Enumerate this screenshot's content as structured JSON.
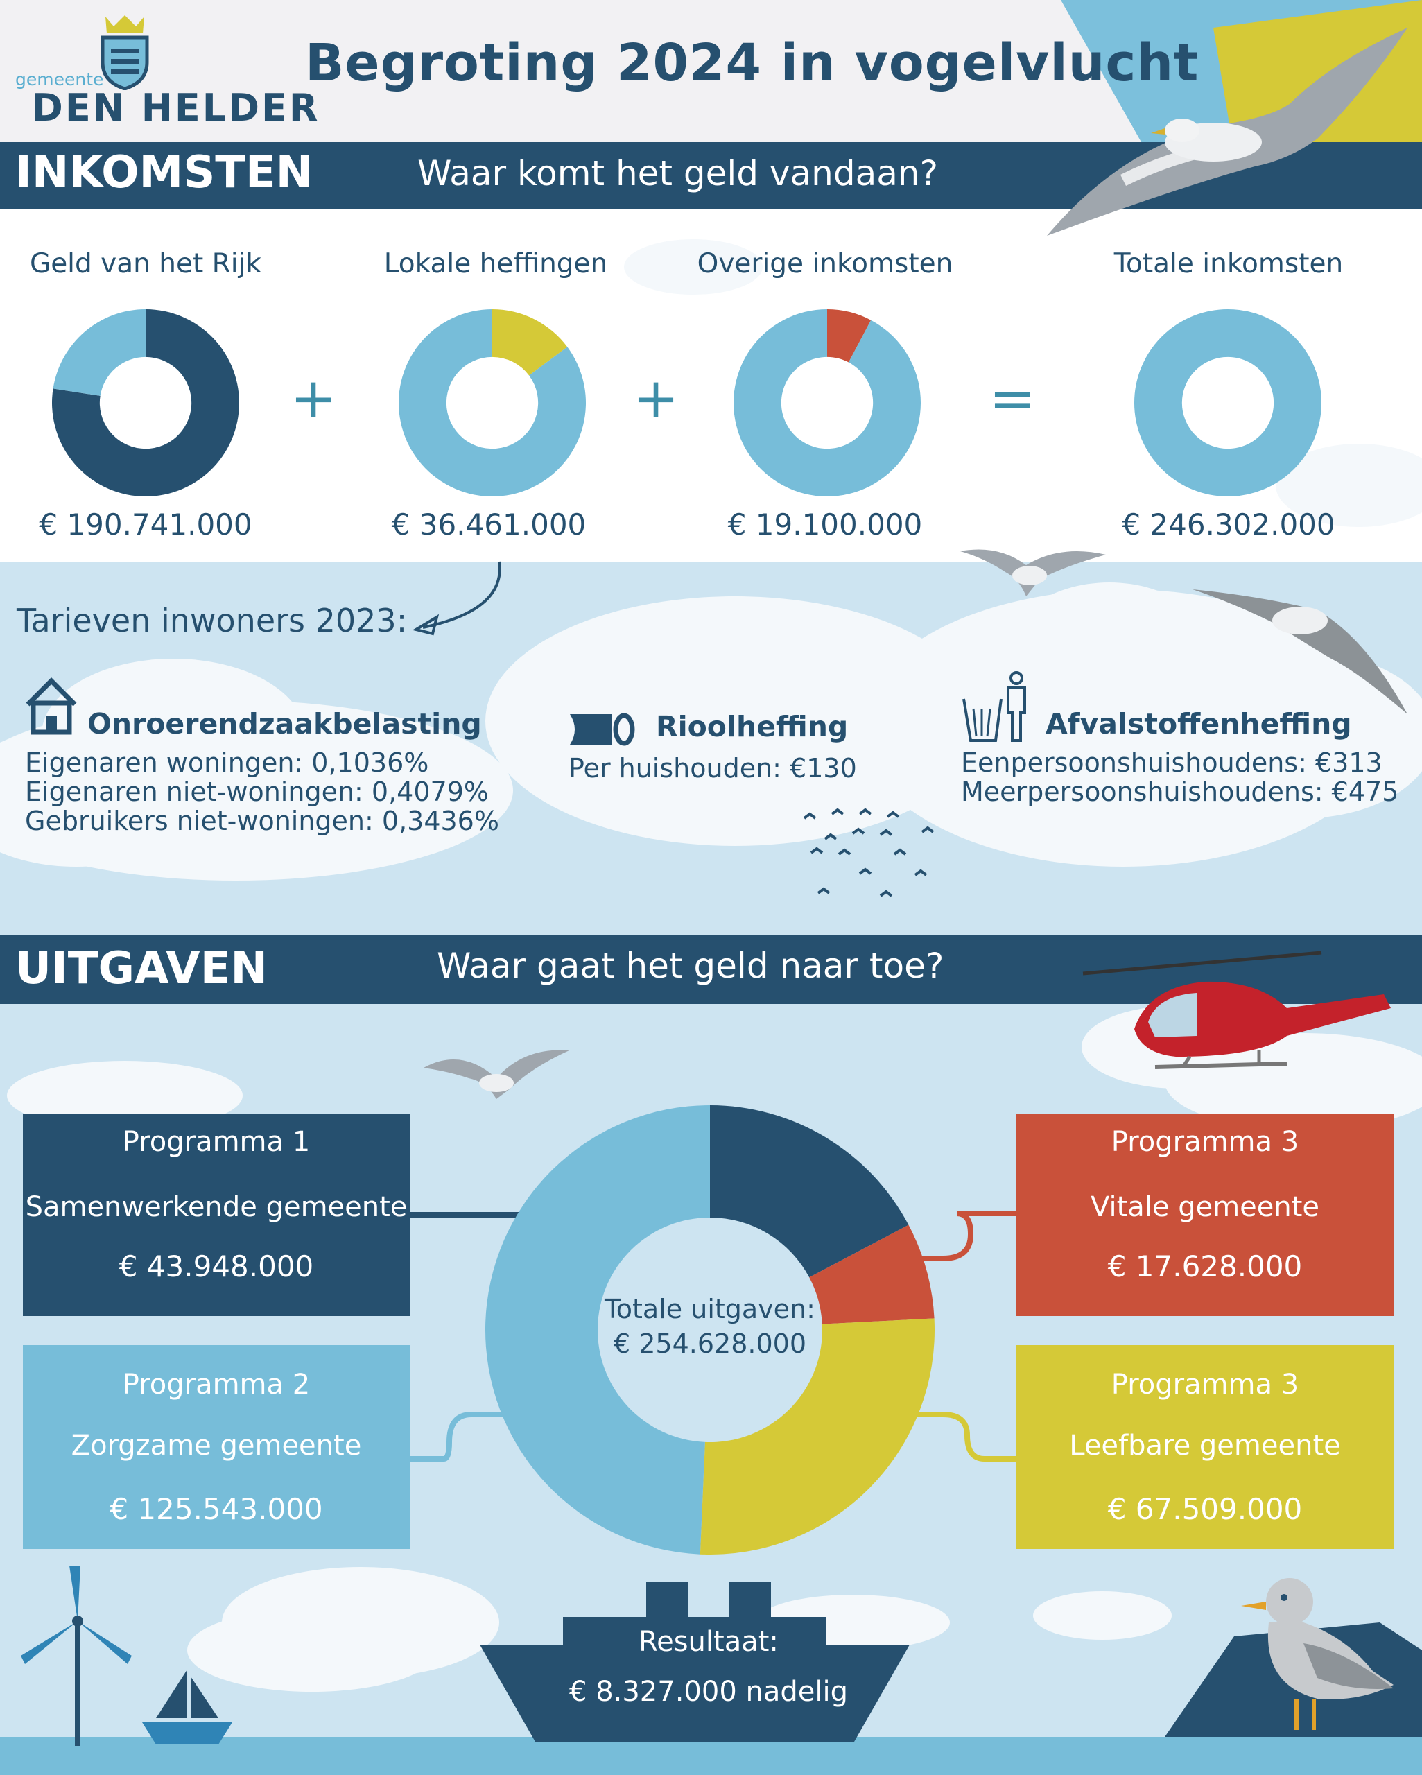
{
  "header": {
    "title": "Begroting 2024 in vogelvlucht",
    "logo_small": "gemeente",
    "logo_big": "DEN HELDER"
  },
  "income_section": {
    "title": "INKOMSTEN",
    "subtitle": "Waar komt het geld vandaan?",
    "plus": "+",
    "equals": "="
  },
  "expense_section": {
    "title": "UITGAVEN",
    "subtitle": "Waar gaat het geld naar toe?"
  },
  "tariffs": {
    "heading": "Tarieven inwoners 2023:",
    "ozb": {
      "title": "Onroerendzaakbelasting",
      "lines": [
        "Eigenaren woningen: 0,1036%",
        "Eigenaren niet-woningen: 0,4079%",
        "Gebruikers niet-woningen: 0,3436%"
      ]
    },
    "riool": {
      "title": "Rioolheffing",
      "lines": [
        "Per huishouden: €130"
      ]
    },
    "afval": {
      "title": "Afvalstoffenheffing",
      "lines": [
        "Eenpersoonshuishoudens: €313",
        "Meerpersoonshuishoudens: €475"
      ]
    }
  },
  "expenses_center": {
    "label": "Totale uitgaven:",
    "amount": "€ 254.628.000"
  },
  "result": {
    "label": "Resultaat:",
    "amount": "€ 8.327.000 nadelig"
  },
  "colors": {
    "navy": "#26506f",
    "light_blue": "#77bdd9",
    "yellow": "#d5c937",
    "red": "#c9513a",
    "sky": "#cde4f1"
  },
  "icons": [
    "house-icon",
    "pipe-icon",
    "trash-bin-icon",
    "seagull-icon",
    "helicopter-icon",
    "wind-turbine-icon",
    "sailboat-icon",
    "ship-icon"
  ],
  "chart_data": [
    {
      "type": "pie",
      "label": "Geld van het Rijk",
      "amount_text": "€ 190.741.000",
      "values": [
        190741000,
        55561000
      ],
      "colors": [
        "#26506f",
        "#77bdd9"
      ]
    },
    {
      "type": "pie",
      "label": "Lokale heffingen",
      "amount_text": "€ 36.461.000",
      "values": [
        36461000,
        209841000
      ],
      "colors": [
        "#d5c937",
        "#77bdd9"
      ]
    },
    {
      "type": "pie",
      "label": "Overige inkomsten",
      "amount_text": "€ 19.100.000",
      "values": [
        19100000,
        227202000
      ],
      "colors": [
        "#c9513a",
        "#77bdd9"
      ]
    },
    {
      "type": "pie",
      "label": "Totale inkomsten",
      "amount_text": "€ 246.302.000",
      "values": [
        246302000
      ],
      "colors": [
        "#77bdd9"
      ]
    },
    {
      "type": "pie",
      "total_text": "€ 254.628.000",
      "slices": [
        {
          "program": "Programma 1",
          "name": "Samenwerkende gemeente",
          "amount_text": "€ 43.948.000",
          "value": 43948000,
          "color": "#26506f"
        },
        {
          "program": "Programma 3",
          "name": "Vitale gemeente",
          "amount_text": "€ 17.628.000",
          "value": 17628000,
          "color": "#c9513a"
        },
        {
          "program": "Programma 3",
          "name": "Leefbare gemeente",
          "amount_text": "€ 67.509.000",
          "value": 67509000,
          "color": "#d5c937"
        },
        {
          "program": "Programma 2",
          "name": "Zorgzame gemeente",
          "amount_text": "€ 125.543.000",
          "value": 125543000,
          "color": "#77bdd9"
        }
      ]
    }
  ]
}
